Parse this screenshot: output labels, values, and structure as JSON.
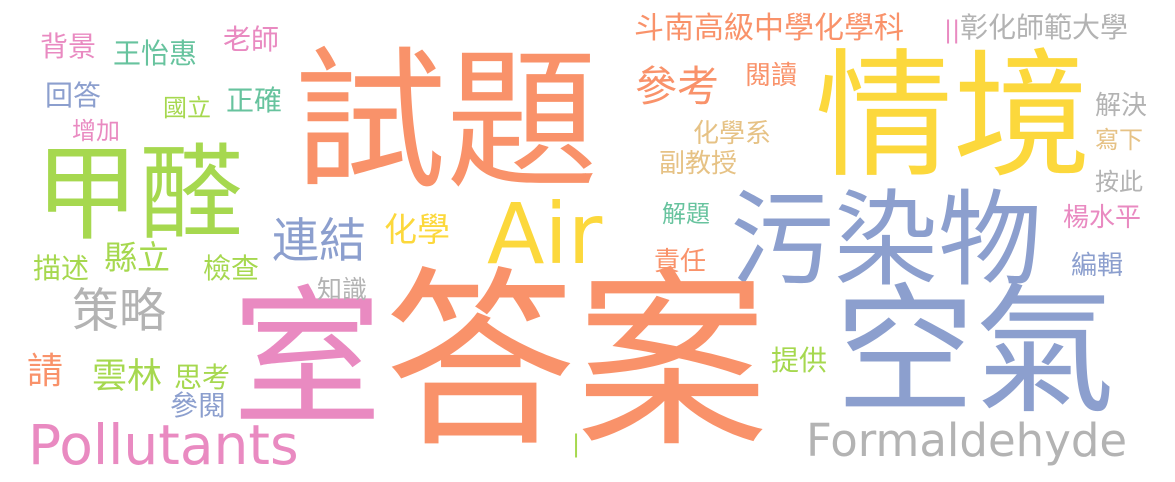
{
  "palette": {
    "salmon": "#f9926a",
    "yellow": "#fcd83c",
    "periwinkle": "#8c9fce",
    "green": "#a6d84f",
    "pink": "#e98ac1",
    "grey": "#b3b3b3",
    "mustard": "#e6c285",
    "teal": "#67c39e"
  },
  "words": [
    {
      "id": "w-shiti",
      "text": "試題",
      "color": "salmon"
    },
    {
      "id": "w-qingjing",
      "text": "情境",
      "color": "yellow"
    },
    {
      "id": "w-jiaquan",
      "text": "甲醛",
      "color": "green"
    },
    {
      "id": "w-air",
      "text": "Air",
      "color": "yellow"
    },
    {
      "id": "w-wuranwu",
      "text": "污染物",
      "color": "periwinkle"
    },
    {
      "id": "w-shi",
      "text": "室",
      "color": "pink"
    },
    {
      "id": "w-daan",
      "text": "答案",
      "color": "salmon"
    },
    {
      "id": "w-kongqi",
      "text": "空氣",
      "color": "periwinkle"
    },
    {
      "id": "w-pollutants",
      "text": "Pollutants",
      "color": "pink"
    },
    {
      "id": "w-formaldehyde",
      "text": "Formaldehyde",
      "color": "grey"
    },
    {
      "id": "w-celue",
      "text": "策略",
      "color": "grey"
    },
    {
      "id": "w-lianjie",
      "text": "連結",
      "color": "periwinkle"
    },
    {
      "id": "w-huaxue",
      "text": "化學",
      "color": "yellow"
    },
    {
      "id": "w-xianli",
      "text": "縣立",
      "color": "green"
    },
    {
      "id": "w-jiancha",
      "text": "檢查",
      "color": "green"
    },
    {
      "id": "w-miaoshu",
      "text": "描述",
      "color": "green"
    },
    {
      "id": "w-zhishi",
      "text": "知識",
      "color": "grey"
    },
    {
      "id": "w-qing",
      "text": "請",
      "color": "salmon"
    },
    {
      "id": "w-yunlin",
      "text": "雲林",
      "color": "green"
    },
    {
      "id": "w-sikao",
      "text": "思考",
      "color": "green"
    },
    {
      "id": "w-canyue",
      "text": "參閱",
      "color": "periwinkle"
    },
    {
      "id": "w-beijing",
      "text": "背景",
      "color": "pink"
    },
    {
      "id": "w-wangyihui",
      "text": "王怡惠",
      "color": "teal"
    },
    {
      "id": "w-laoshi",
      "text": "老師",
      "color": "pink"
    },
    {
      "id": "w-huida",
      "text": "回答",
      "color": "periwinkle"
    },
    {
      "id": "w-guoli",
      "text": "國立",
      "color": "green"
    },
    {
      "id": "w-zhengque",
      "text": "正確",
      "color": "teal"
    },
    {
      "id": "w-zengjia",
      "text": "增加",
      "color": "pink"
    },
    {
      "id": "w-dounan",
      "text": "斗南高級中學化學科",
      "color": "salmon"
    },
    {
      "id": "w-sep1",
      "text": "||",
      "color": "pink"
    },
    {
      "id": "w-changhua",
      "text": "彰化師範大學",
      "color": "grey"
    },
    {
      "id": "w-cankao",
      "text": "參考",
      "color": "salmon"
    },
    {
      "id": "w-yuedu",
      "text": "閱讀",
      "color": "salmon"
    },
    {
      "id": "w-huaxuexi",
      "text": "化學系",
      "color": "mustard"
    },
    {
      "id": "w-fujiaoshou",
      "text": "副教授",
      "color": "mustard"
    },
    {
      "id": "w-jieti",
      "text": "解題",
      "color": "teal"
    },
    {
      "id": "w-zeren",
      "text": "責任",
      "color": "salmon"
    },
    {
      "id": "w-tigong",
      "text": "提供",
      "color": "green"
    },
    {
      "id": "w-jiejue",
      "text": "解決",
      "color": "grey"
    },
    {
      "id": "w-xiexia",
      "text": "寫下",
      "color": "mustard"
    },
    {
      "id": "w-anci",
      "text": "按此",
      "color": "grey"
    },
    {
      "id": "w-yangshuiping",
      "text": "楊水平",
      "color": "pink"
    },
    {
      "id": "w-bianji",
      "text": "編輯",
      "color": "periwinkle"
    },
    {
      "id": "w-sep2",
      "text": "|",
      "color": "green"
    }
  ]
}
